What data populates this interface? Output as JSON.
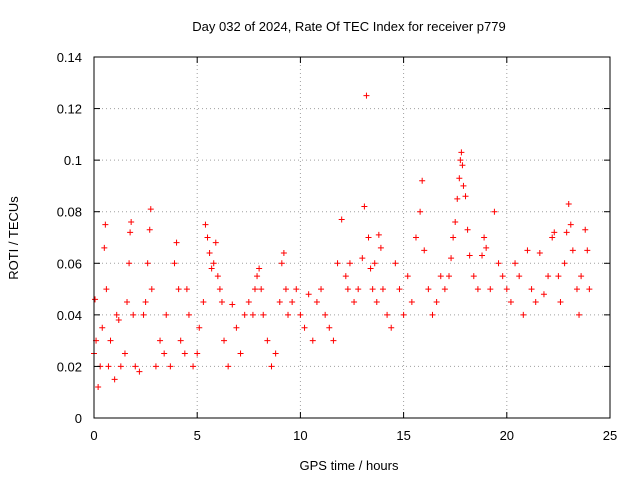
{
  "chart_data": {
    "type": "scatter",
    "title": "Day 032 of 2024, Rate Of TEC Index for receiver p779",
    "xlabel": "GPS time / hours",
    "ylabel": "ROTI / TECUs",
    "xlim": [
      0,
      25
    ],
    "ylim": [
      0,
      0.14
    ],
    "xticks": [
      0,
      5,
      10,
      15,
      20,
      25
    ],
    "yticks": [
      0,
      0.02,
      0.04,
      0.06,
      0.08,
      0.1,
      0.12,
      0.14
    ],
    "grid": true,
    "marker": "+",
    "series": [
      {
        "name": "p779",
        "color": "#ff0000",
        "points": [
          [
            0.0,
            0.025
          ],
          [
            0.05,
            0.046
          ],
          [
            0.1,
            0.03
          ],
          [
            0.2,
            0.012
          ],
          [
            0.3,
            0.02
          ],
          [
            0.4,
            0.035
          ],
          [
            0.5,
            0.066
          ],
          [
            0.55,
            0.075
          ],
          [
            0.6,
            0.05
          ],
          [
            0.7,
            0.02
          ],
          [
            0.8,
            0.03
          ],
          [
            1.0,
            0.015
          ],
          [
            1.1,
            0.04
          ],
          [
            1.2,
            0.038
          ],
          [
            1.3,
            0.02
          ],
          [
            1.5,
            0.025
          ],
          [
            1.6,
            0.045
          ],
          [
            1.7,
            0.06
          ],
          [
            1.75,
            0.072
          ],
          [
            1.8,
            0.076
          ],
          [
            1.9,
            0.04
          ],
          [
            2.0,
            0.02
          ],
          [
            2.2,
            0.018
          ],
          [
            2.4,
            0.04
          ],
          [
            2.5,
            0.045
          ],
          [
            2.6,
            0.06
          ],
          [
            2.7,
            0.073
          ],
          [
            2.75,
            0.081
          ],
          [
            2.8,
            0.05
          ],
          [
            3.0,
            0.02
          ],
          [
            3.2,
            0.03
          ],
          [
            3.4,
            0.025
          ],
          [
            3.5,
            0.04
          ],
          [
            3.7,
            0.02
          ],
          [
            3.9,
            0.06
          ],
          [
            4.0,
            0.068
          ],
          [
            4.1,
            0.05
          ],
          [
            4.2,
            0.03
          ],
          [
            4.4,
            0.025
          ],
          [
            4.5,
            0.05
          ],
          [
            4.6,
            0.04
          ],
          [
            4.8,
            0.02
          ],
          [
            5.0,
            0.025
          ],
          [
            5.1,
            0.035
          ],
          [
            5.3,
            0.045
          ],
          [
            5.4,
            0.075
          ],
          [
            5.5,
            0.07
          ],
          [
            5.6,
            0.064
          ],
          [
            5.7,
            0.058
          ],
          [
            5.8,
            0.06
          ],
          [
            5.9,
            0.068
          ],
          [
            6.0,
            0.055
          ],
          [
            6.1,
            0.05
          ],
          [
            6.2,
            0.045
          ],
          [
            6.3,
            0.03
          ],
          [
            6.5,
            0.02
          ],
          [
            6.7,
            0.044
          ],
          [
            6.9,
            0.035
          ],
          [
            7.1,
            0.025
          ],
          [
            7.3,
            0.04
          ],
          [
            7.5,
            0.045
          ],
          [
            7.7,
            0.04
          ],
          [
            7.8,
            0.05
          ],
          [
            7.9,
            0.055
          ],
          [
            8.0,
            0.058
          ],
          [
            8.1,
            0.05
          ],
          [
            8.2,
            0.04
          ],
          [
            8.4,
            0.03
          ],
          [
            8.6,
            0.02
          ],
          [
            8.8,
            0.025
          ],
          [
            9.0,
            0.045
          ],
          [
            9.1,
            0.06
          ],
          [
            9.2,
            0.064
          ],
          [
            9.3,
            0.05
          ],
          [
            9.4,
            0.04
          ],
          [
            9.6,
            0.045
          ],
          [
            9.8,
            0.05
          ],
          [
            10.0,
            0.04
          ],
          [
            10.2,
            0.035
          ],
          [
            10.4,
            0.048
          ],
          [
            10.6,
            0.03
          ],
          [
            10.8,
            0.045
          ],
          [
            11.0,
            0.05
          ],
          [
            11.2,
            0.04
          ],
          [
            11.4,
            0.035
          ],
          [
            11.6,
            0.03
          ],
          [
            11.8,
            0.06
          ],
          [
            12.0,
            0.077
          ],
          [
            12.2,
            0.055
          ],
          [
            12.3,
            0.05
          ],
          [
            12.4,
            0.06
          ],
          [
            12.6,
            0.045
          ],
          [
            12.8,
            0.05
          ],
          [
            13.0,
            0.062
          ],
          [
            13.1,
            0.082
          ],
          [
            13.2,
            0.125
          ],
          [
            13.3,
            0.07
          ],
          [
            13.4,
            0.058
          ],
          [
            13.5,
            0.05
          ],
          [
            13.6,
            0.06
          ],
          [
            13.7,
            0.045
          ],
          [
            13.8,
            0.071
          ],
          [
            13.9,
            0.066
          ],
          [
            14.0,
            0.05
          ],
          [
            14.2,
            0.04
          ],
          [
            14.4,
            0.035
          ],
          [
            14.6,
            0.06
          ],
          [
            14.8,
            0.05
          ],
          [
            15.0,
            0.04
          ],
          [
            15.2,
            0.055
          ],
          [
            15.4,
            0.045
          ],
          [
            15.6,
            0.07
          ],
          [
            15.8,
            0.08
          ],
          [
            15.9,
            0.092
          ],
          [
            16.0,
            0.065
          ],
          [
            16.2,
            0.05
          ],
          [
            16.4,
            0.04
          ],
          [
            16.6,
            0.045
          ],
          [
            16.8,
            0.055
          ],
          [
            17.0,
            0.05
          ],
          [
            17.2,
            0.055
          ],
          [
            17.3,
            0.062
          ],
          [
            17.4,
            0.07
          ],
          [
            17.5,
            0.076
          ],
          [
            17.6,
            0.085
          ],
          [
            17.7,
            0.093
          ],
          [
            17.75,
            0.1
          ],
          [
            17.8,
            0.103
          ],
          [
            17.85,
            0.098
          ],
          [
            17.9,
            0.09
          ],
          [
            18.0,
            0.086
          ],
          [
            18.1,
            0.073
          ],
          [
            18.2,
            0.063
          ],
          [
            18.4,
            0.055
          ],
          [
            18.6,
            0.05
          ],
          [
            18.8,
            0.063
          ],
          [
            18.9,
            0.07
          ],
          [
            19.0,
            0.066
          ],
          [
            19.2,
            0.05
          ],
          [
            19.4,
            0.08
          ],
          [
            19.6,
            0.06
          ],
          [
            19.8,
            0.055
          ],
          [
            20.0,
            0.05
          ],
          [
            20.2,
            0.045
          ],
          [
            20.4,
            0.06
          ],
          [
            20.6,
            0.055
          ],
          [
            20.8,
            0.04
          ],
          [
            21.0,
            0.065
          ],
          [
            21.2,
            0.05
          ],
          [
            21.4,
            0.045
          ],
          [
            21.6,
            0.064
          ],
          [
            21.8,
            0.048
          ],
          [
            22.0,
            0.055
          ],
          [
            22.2,
            0.07
          ],
          [
            22.3,
            0.072
          ],
          [
            22.5,
            0.055
          ],
          [
            22.6,
            0.045
          ],
          [
            22.8,
            0.06
          ],
          [
            22.9,
            0.072
          ],
          [
            23.0,
            0.083
          ],
          [
            23.1,
            0.075
          ],
          [
            23.2,
            0.065
          ],
          [
            23.4,
            0.05
          ],
          [
            23.5,
            0.04
          ],
          [
            23.6,
            0.055
          ],
          [
            23.8,
            0.073
          ],
          [
            23.9,
            0.065
          ],
          [
            24.0,
            0.05
          ]
        ]
      }
    ]
  }
}
